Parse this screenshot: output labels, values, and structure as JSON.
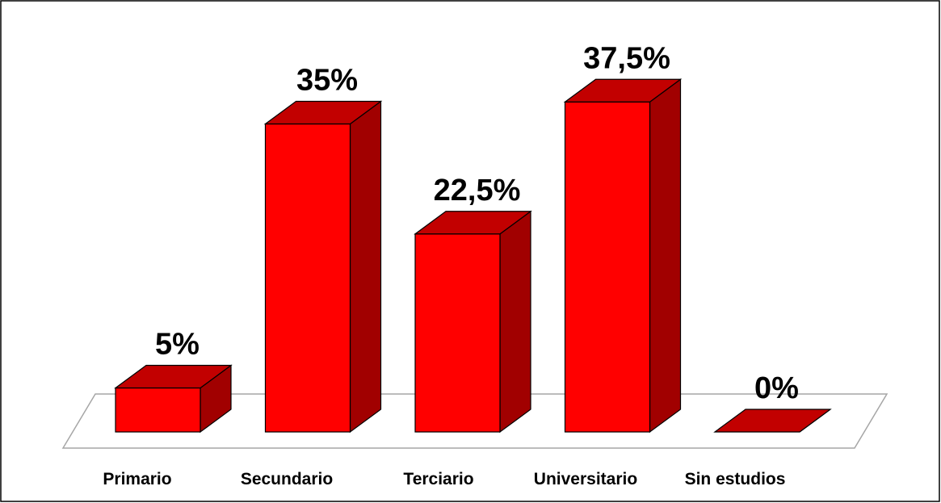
{
  "chart_data": {
    "type": "bar3d",
    "categories": [
      "Primario",
      "Secundario",
      "Terciario",
      "Universitario",
      "Sin estudios"
    ],
    "values": [
      5,
      35,
      22.5,
      37.5,
      0
    ],
    "value_labels": [
      "5%",
      "35%",
      "22,5%",
      "37,5%",
      "0%"
    ],
    "color": "#ff0000"
  }
}
